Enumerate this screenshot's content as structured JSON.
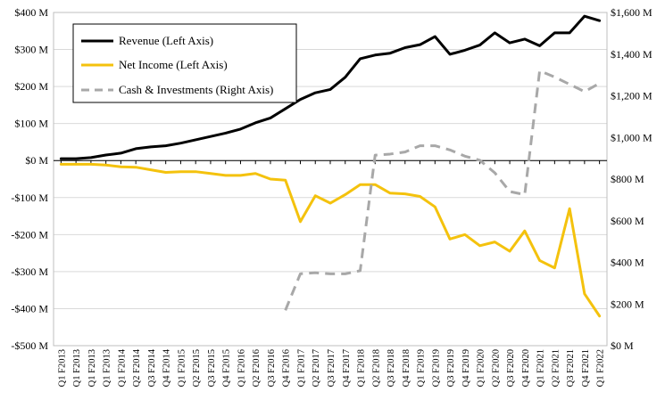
{
  "chart_data": {
    "type": "line",
    "title": "",
    "xlabel": "",
    "ylabel": "",
    "categories": [
      "Q1 F2013",
      "Q1 F2013",
      "Q1 F2013",
      "Q1 F2013",
      "Q1 F2014",
      "Q2 F2014",
      "Q3 F2014",
      "Q4 F2014",
      "Q1 F2015",
      "Q2 F2015",
      "Q3 F2015",
      "Q4 F2015",
      "Q1 F2016",
      "Q2 F2016",
      "Q3 F2016",
      "Q4 F2016",
      "Q1 F2017",
      "Q2 F2017",
      "Q3 F2017",
      "Q4 F2017",
      "Q1 F2018",
      "Q2 F2018",
      "Q3 F2018",
      "Q4 F2018",
      "Q1 F2019",
      "Q2 F2019",
      "Q3 F2019",
      "Q4 F2019",
      "Q1 F2020",
      "Q2 F2020",
      "Q3 F2020",
      "Q4 F2020",
      "Q1 F2021",
      "Q2 F2021",
      "Q3 F2021",
      "Q4 F2021",
      "Q1 F2022"
    ],
    "left_axis": {
      "ylim": [
        -500,
        400
      ],
      "ticks": [
        400,
        300,
        200,
        100,
        0,
        -100,
        -200,
        -300,
        -400,
        -500
      ],
      "tick_labels": [
        "$400 M",
        "$300 M",
        "$200 M",
        "$100 M",
        "$0 M",
        "-$100 M",
        "-$200 M",
        "-$300 M",
        "-$400 M",
        "-$500 M"
      ]
    },
    "right_axis": {
      "ylim": [
        0,
        1600
      ],
      "ticks": [
        1600,
        1400,
        1200,
        1000,
        800,
        600,
        400,
        200,
        0
      ],
      "tick_labels": [
        "$1,600 M",
        "$1,400 M",
        "$1,200 M",
        "$1,000 M",
        "$800 M",
        "$600 M",
        "$400 M",
        "$200 M",
        "$0 M"
      ]
    },
    "series": [
      {
        "name": "Revenue (Left Axis)",
        "axis": "left",
        "color": "#000000",
        "dash": "solid",
        "values": [
          5,
          5,
          8,
          15,
          20,
          32,
          37,
          40,
          47,
          56,
          65,
          74,
          85,
          102,
          115,
          140,
          165,
          183,
          192,
          225,
          275,
          285,
          290,
          305,
          313,
          335,
          287,
          298,
          312,
          345,
          318,
          328,
          310,
          345,
          345,
          390,
          378
        ]
      },
      {
        "name": "Net Income (Left Axis)",
        "axis": "left",
        "color": "#F4C20D",
        "dash": "solid",
        "values": [
          -10,
          -10,
          -10,
          -12,
          -17,
          -18,
          -25,
          -32,
          -30,
          -30,
          -35,
          -40,
          -40,
          -35,
          -50,
          -53,
          -165,
          -95,
          -115,
          -92,
          -65,
          -65,
          -88,
          -90,
          -97,
          -125,
          -212,
          -200,
          -230,
          -220,
          -245,
          -190,
          -270,
          -290,
          -130,
          -360,
          -420
        ]
      },
      {
        "name": "Cash & Investments (Right Axis)",
        "axis": "right",
        "color": "#A8A8A8",
        "dash": "dashed",
        "values": [
          null,
          null,
          null,
          null,
          null,
          null,
          null,
          null,
          null,
          null,
          null,
          null,
          null,
          null,
          null,
          170,
          345,
          350,
          345,
          345,
          360,
          915,
          920,
          930,
          960,
          960,
          940,
          910,
          890,
          830,
          740,
          725,
          1320,
          1290,
          1255,
          1220,
          1260
        ]
      }
    ],
    "legend": {
      "position": "top-left",
      "entries": [
        "Revenue (Left Axis)",
        "Net Income (Left Axis)",
        "Cash & Investments (Right Axis)"
      ]
    },
    "grid": {
      "y": true,
      "x": false
    }
  }
}
